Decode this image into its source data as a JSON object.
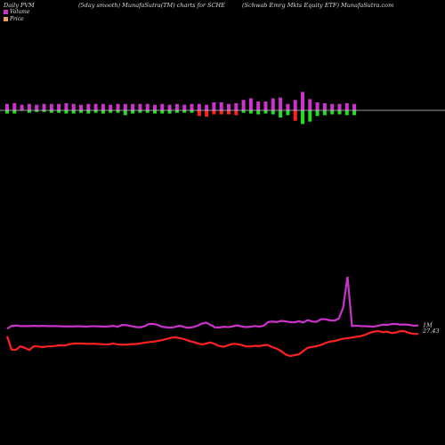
{
  "header": {
    "left": "Daily PVM",
    "center": "(5day smooth) MunafaSutra(TM) charts for SCHE",
    "right": "(Schwab Emrg Mkts Equity ETF) MunafaSutra.com"
  },
  "legend": [
    {
      "label": "Volume",
      "color": "#cc33cc"
    },
    {
      "label": "Price",
      "color": "#e8a060"
    }
  ],
  "colors": {
    "volume_line": "#cc33cc",
    "price_line": "#ff2222",
    "bar_up": "#cc33cc",
    "bar_down_red": "#ff2222",
    "bar_down_green": "#22dd22",
    "baseline": "#cccccc"
  },
  "chart_data": {
    "type": "line",
    "series": [
      {
        "name": "Volume",
        "label": "1M",
        "values": [
          0.63,
          0.79,
          0.81,
          0.78,
          0.78,
          0.78,
          0.79,
          0.78,
          0.79,
          0.78,
          0.78,
          0.78,
          0.77,
          0.76,
          0.76,
          0.76,
          0.77,
          0.76,
          0.75,
          0.77,
          0.77,
          0.76,
          0.75,
          0.76,
          0.79,
          0.74,
          0.84,
          0.83,
          0.78,
          0.73,
          0.71,
          0.76,
          0.89,
          0.9,
          0.85,
          0.74,
          0.71,
          0.69,
          0.73,
          0.8,
          0.73,
          0.68,
          0.72,
          0.79,
          0.91,
          0.97,
          0.85,
          0.71,
          0.7,
          0.74,
          0.72,
          0.76,
          0.82,
          0.76,
          0.72,
          0.74,
          0.78,
          0.75,
          0.79,
          1.0,
          1.03,
          1.0,
          1.07,
          1.04,
          1.0,
          0.99,
          1.05,
          0.98,
          1.11,
          1.03,
          1.02,
          1.16,
          1.16,
          1.1,
          1.08,
          1.19,
          1.8,
          3.52,
          0.78,
          0.8,
          0.78,
          0.77,
          0.76,
          0.75,
          0.8,
          0.86,
          0.84,
          0.9,
          0.89,
          0.86,
          0.87,
          0.84,
          0.8,
          0.81
        ]
      },
      {
        "name": "Price",
        "label": "27.43",
        "values": [
          27.35,
          26.88,
          26.87,
          26.99,
          26.94,
          26.86,
          26.99,
          26.99,
          26.96,
          26.99,
          26.99,
          27.01,
          27.03,
          27.02,
          27.06,
          27.09,
          27.09,
          27.09,
          27.08,
          27.08,
          27.08,
          27.07,
          27.06,
          27.06,
          27.09,
          27.06,
          27.05,
          27.05,
          27.07,
          27.07,
          27.09,
          27.12,
          27.14,
          27.15,
          27.18,
          27.21,
          27.25,
          27.29,
          27.31,
          27.28,
          27.25,
          27.19,
          27.15,
          27.1,
          27.06,
          27.09,
          27.13,
          27.07,
          27.0,
          26.98,
          27.03,
          27.08,
          27.07,
          27.04,
          26.99,
          26.99,
          27.01,
          27.0,
          27.03,
          27.04,
          26.96,
          26.91,
          26.82,
          26.7,
          26.65,
          26.68,
          26.71,
          26.83,
          26.94,
          26.97,
          27.0,
          27.04,
          27.11,
          27.16,
          27.18,
          27.22,
          27.26,
          27.28,
          27.3,
          27.33,
          27.35,
          27.4,
          27.47,
          27.51,
          27.53,
          27.49,
          27.51,
          27.46,
          27.48,
          27.53,
          27.52,
          27.46,
          27.43,
          27.43
        ]
      }
    ],
    "volume_bars": {
      "baseline_value": 0,
      "up": [
        0.8,
        0.9,
        0.7,
        0.8,
        0.7,
        0.8,
        0.8,
        0.8,
        0.9,
        0.8,
        0.7,
        0.8,
        0.8,
        0.8,
        0.7,
        0.8,
        0.8,
        0.8,
        0.8,
        0.8,
        0.7,
        0.8,
        0.7,
        0.8,
        0.7,
        0.8,
        0.8,
        0.7,
        1.0,
        1.0,
        0.8,
        0.9,
        1.3,
        1.5,
        1.1,
        1.1,
        1.5,
        1.6,
        0.8,
        1.3,
        2.3,
        1.4,
        1.0,
        0.9,
        0.8,
        0.8,
        0.9,
        0.8
      ],
      "down": [
        -0.4,
        -0.4,
        0.0,
        -0.3,
        -0.2,
        -0.2,
        -0.3,
        -0.3,
        -0.4,
        -0.4,
        -0.3,
        -0.4,
        -0.3,
        -0.4,
        -0.3,
        -0.3,
        -0.6,
        -0.4,
        -0.3,
        -0.3,
        -0.4,
        -0.4,
        -0.4,
        -0.3,
        -0.3,
        -0.3,
        -0.7,
        -0.8,
        -0.5,
        -0.5,
        -0.5,
        -0.6,
        -0.3,
        -0.4,
        -0.5,
        -0.4,
        -0.5,
        -0.9,
        -0.6,
        -1.3,
        -1.7,
        -1.4,
        -0.7,
        -0.6,
        -0.5,
        -0.5,
        -0.6,
        -0.6
      ],
      "down_color": [
        "green",
        "green",
        "none",
        "green",
        "green",
        "green",
        "green",
        "green",
        "green",
        "green",
        "green",
        "green",
        "green",
        "green",
        "green",
        "green",
        "green",
        "green",
        "green",
        "green",
        "green",
        "green",
        "green",
        "green",
        "green",
        "green",
        "red",
        "red",
        "red",
        "red",
        "red",
        "red",
        "green",
        "green",
        "green",
        "green",
        "green",
        "green",
        "green",
        "red",
        "green",
        "green",
        "green",
        "green",
        "green",
        "green",
        "green",
        "green"
      ]
    }
  }
}
